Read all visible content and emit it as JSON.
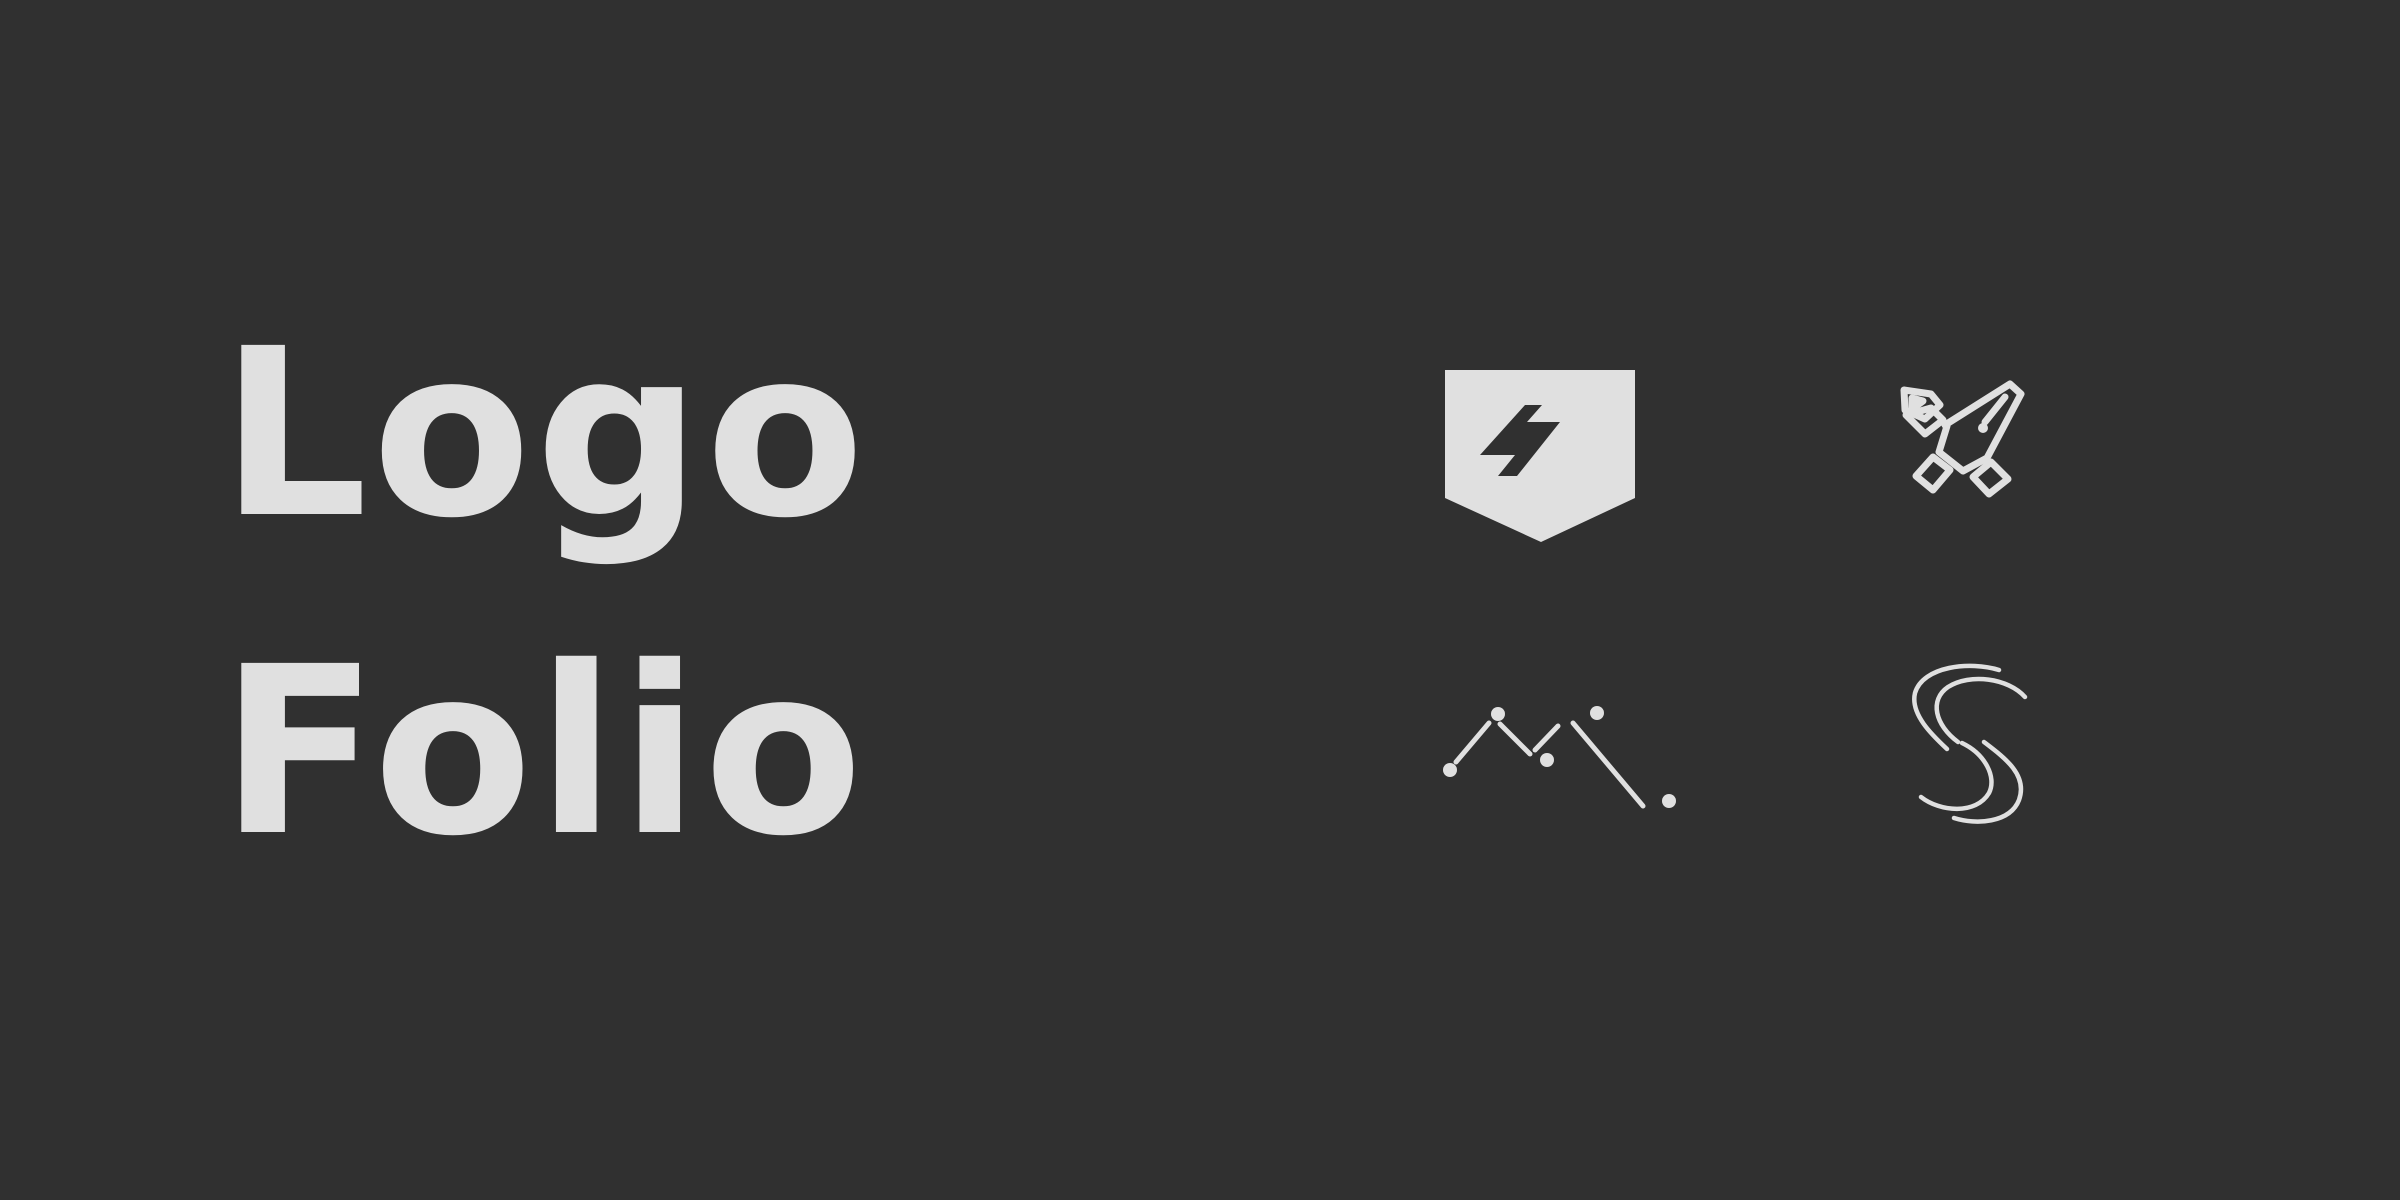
{
  "wordmark": {
    "line_1": "Logo",
    "line_2": "Folio"
  },
  "marks": [
    {
      "name": "shield-lightning-icon"
    },
    {
      "name": "sword-icon"
    },
    {
      "name": "mountain-peaks-icon"
    },
    {
      "name": "swirl-s-icon"
    }
  ],
  "colors": {
    "background": "#303030",
    "foreground": "#e0e0e0"
  }
}
